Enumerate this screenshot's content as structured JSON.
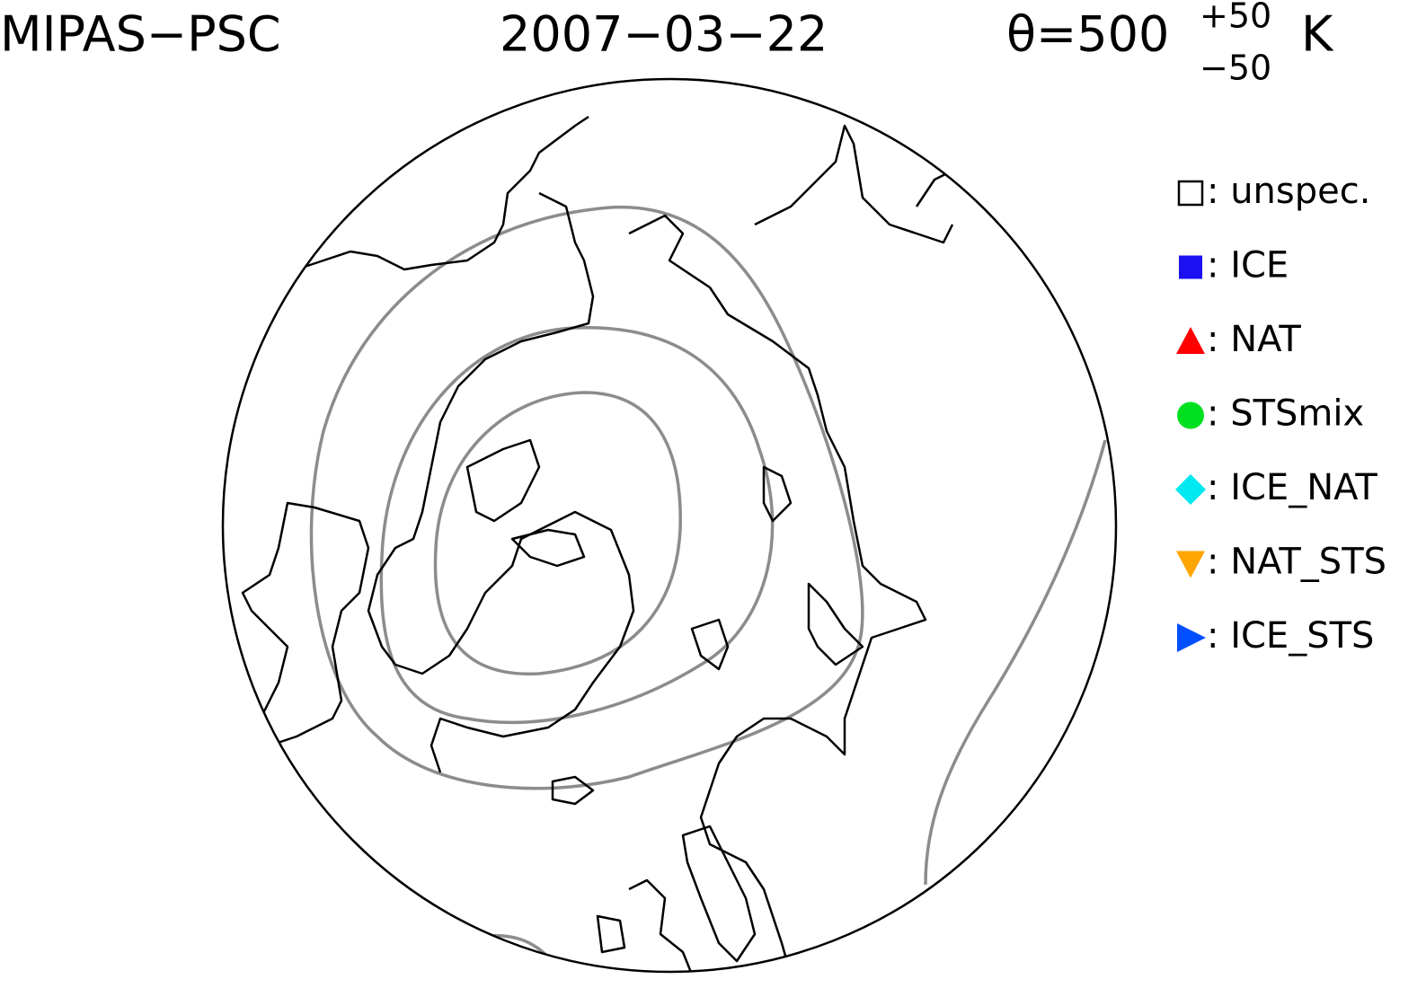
{
  "header": {
    "title": "MIPAS−PSC",
    "date": "2007−03−22",
    "level": "θ=500",
    "level_upper": "+50",
    "level_lower": "−50",
    "level_unit": "K"
  },
  "legend": [
    {
      "symbol": "square-open",
      "color": "#000000",
      "label": ": unspec."
    },
    {
      "symbol": "square",
      "color": "#1a10f0",
      "label": ": ICE"
    },
    {
      "symbol": "triangle-up",
      "color": "#ff0000",
      "label": ": NAT"
    },
    {
      "symbol": "circle",
      "color": "#00e020",
      "label": ": STSmix"
    },
    {
      "symbol": "diamond",
      "color": "#00e8f0",
      "label": ": ICE_NAT"
    },
    {
      "symbol": "triangle-down",
      "color": "#ffa500",
      "label": ": NAT_STS"
    },
    {
      "symbol": "triangle-right",
      "color": "#0050ff",
      "label": ": ICE_STS"
    }
  ]
}
